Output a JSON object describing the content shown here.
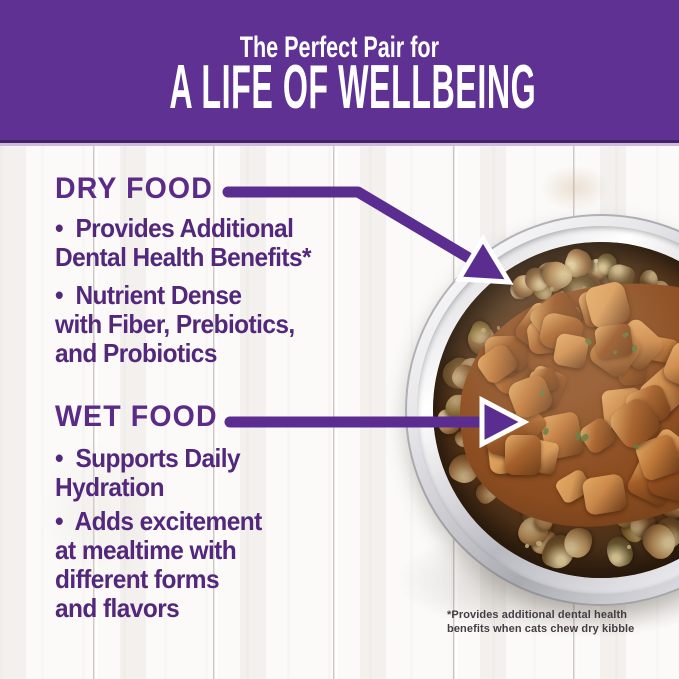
{
  "header": {
    "subtitle": "The Perfect Pair for",
    "title": "A LIFE OF WELLBEING"
  },
  "dry_food": {
    "heading": "DRY FOOD",
    "bullets": [
      {
        "lines": [
          "•  Provides Additional",
          "Dental Health Benefits*"
        ]
      },
      {
        "lines": [
          "•  Nutrient Dense",
          "with Fiber, Prebiotics,",
          "and Probiotics"
        ]
      }
    ]
  },
  "wet_food": {
    "heading": "WET FOOD",
    "bullets": [
      {
        "lines": [
          "•  Supports Daily",
          "Hydration"
        ]
      },
      {
        "lines": [
          "•  Adds excitement",
          "at mealtime with",
          "different forms",
          "and flavors"
        ]
      }
    ]
  },
  "footnote": {
    "lines": [
      "*Provides additional dental health",
      "benefits when cats chew dry kibble"
    ]
  },
  "colors": {
    "banner_purple": "#5e3192",
    "banner_edge_dark": "#432067",
    "banner_edge_light": "#cdbadf",
    "heading_purple": "#5b2b87",
    "body_purple": "#53277c",
    "arrow_purple": "#5c2d91",
    "arrow_outline": "#ffffff",
    "footnote_gray": "#443c43"
  },
  "bowl": {
    "label": "steel-bowl-with-dry-kibble-and-wet-food",
    "kibble_colors": [
      "#a07547",
      "#8a6238",
      "#b58a55",
      "#74572f",
      "#97803f",
      "#c09a63",
      "#6f6136"
    ],
    "kibble_highlight": "#e6d2a0",
    "kibble_dark": "#4a331b",
    "crumb_color": "#ddc691",
    "wet_colors": [
      "#bd7638",
      "#a55e27",
      "#cd8a4a",
      "#94501f",
      "#d89a57"
    ],
    "wet_highlight": "#e2a964",
    "wet_dark": "#6e3c18",
    "gravy_color": "#8c4d20",
    "fleck_color": "#5f7a3a"
  }
}
